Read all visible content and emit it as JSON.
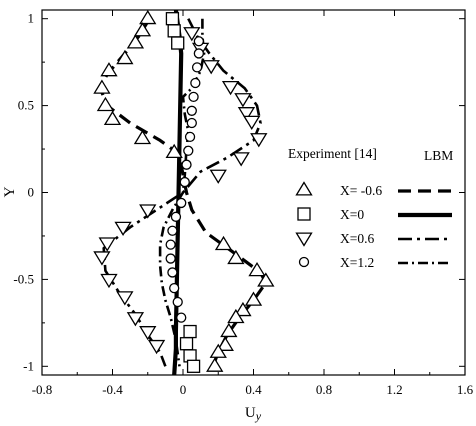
{
  "chart_data": {
    "type": "scatter",
    "xlabel": "U",
    "xlabel_sub": "y",
    "ylabel": "Y",
    "xlim": [
      -0.8,
      1.6
    ],
    "ylim": [
      -1.05,
      1.05
    ],
    "xticks": [
      -0.8,
      -0.4,
      0,
      0.4,
      0.8,
      1.2,
      1.6
    ],
    "xtick_labels": [
      "-0.8",
      "-0.4",
      "0",
      "0.4",
      "0.8",
      "1.2",
      "1.6"
    ],
    "yticks": [
      -1,
      -0.5,
      0,
      0.5,
      1
    ],
    "ytick_labels": [
      "-1",
      "-0.5",
      "0",
      "0.5",
      "1"
    ],
    "grid": false,
    "legend": {
      "placement": "right",
      "header_experiment": "Experiment  [14]",
      "header_lbm": "LBM"
    },
    "series": [
      {
        "label": "X= -0.6",
        "marker": "triangle-up",
        "line": "dashed",
        "experiment": [
          {
            "x": -0.2,
            "y": 1.0
          },
          {
            "x": -0.23,
            "y": 0.93
          },
          {
            "x": -0.27,
            "y": 0.86
          },
          {
            "x": -0.33,
            "y": 0.77
          },
          {
            "x": -0.42,
            "y": 0.7
          },
          {
            "x": -0.46,
            "y": 0.6
          },
          {
            "x": -0.44,
            "y": 0.5
          },
          {
            "x": -0.4,
            "y": 0.42
          },
          {
            "x": -0.23,
            "y": 0.31
          },
          {
            "x": -0.05,
            "y": 0.23
          },
          {
            "x": 0.23,
            "y": -0.3
          },
          {
            "x": 0.3,
            "y": -0.38
          },
          {
            "x": 0.42,
            "y": -0.45
          },
          {
            "x": 0.47,
            "y": -0.51
          },
          {
            "x": 0.4,
            "y": -0.62
          },
          {
            "x": 0.34,
            "y": -0.68
          },
          {
            "x": 0.3,
            "y": -0.72
          },
          {
            "x": 0.26,
            "y": -0.8
          },
          {
            "x": 0.24,
            "y": -0.88
          },
          {
            "x": 0.2,
            "y": -0.92
          },
          {
            "x": 0.18,
            "y": -1.0
          }
        ],
        "lbm": [
          {
            "x": -0.19,
            "y": 1.0
          },
          {
            "x": -0.25,
            "y": 0.9
          },
          {
            "x": -0.33,
            "y": 0.8
          },
          {
            "x": -0.43,
            "y": 0.68
          },
          {
            "x": -0.47,
            "y": 0.6
          },
          {
            "x": -0.43,
            "y": 0.5
          },
          {
            "x": -0.3,
            "y": 0.4
          },
          {
            "x": -0.13,
            "y": 0.3
          },
          {
            "x": -0.02,
            "y": 0.22
          },
          {
            "x": 0.0,
            "y": 0.1
          },
          {
            "x": 0.02,
            "y": 0.0
          },
          {
            "x": 0.05,
            "y": -0.1
          },
          {
            "x": 0.13,
            "y": -0.23
          },
          {
            "x": 0.28,
            "y": -0.34
          },
          {
            "x": 0.44,
            "y": -0.46
          },
          {
            "x": 0.47,
            "y": -0.52
          },
          {
            "x": 0.4,
            "y": -0.62
          },
          {
            "x": 0.32,
            "y": -0.72
          },
          {
            "x": 0.25,
            "y": -0.82
          },
          {
            "x": 0.2,
            "y": -0.92
          },
          {
            "x": 0.17,
            "y": -1.0
          }
        ]
      },
      {
        "label": "X=0",
        "marker": "square",
        "line": "solid-thick",
        "experiment": [
          {
            "x": -0.06,
            "y": 1.0
          },
          {
            "x": -0.05,
            "y": 0.93
          },
          {
            "x": -0.03,
            "y": 0.86
          },
          {
            "x": 0.04,
            "y": -0.8
          },
          {
            "x": 0.02,
            "y": -0.87
          },
          {
            "x": 0.04,
            "y": -0.94
          },
          {
            "x": 0.06,
            "y": -1.0
          }
        ],
        "lbm": [
          {
            "x": -0.04,
            "y": 1.05
          },
          {
            "x": -0.02,
            "y": 0.9
          },
          {
            "x": -0.01,
            "y": 0.8
          },
          {
            "x": -0.04,
            "y": -0.8
          },
          {
            "x": -0.04,
            "y": -0.9
          },
          {
            "x": -0.05,
            "y": -1.05
          }
        ]
      },
      {
        "label": "X=0.6",
        "marker": "triangle-down",
        "line": "long-short-dash",
        "experiment": [
          {
            "x": 0.05,
            "y": 0.92
          },
          {
            "x": 0.1,
            "y": 0.83
          },
          {
            "x": 0.16,
            "y": 0.73
          },
          {
            "x": 0.27,
            "y": 0.61
          },
          {
            "x": 0.34,
            "y": 0.54
          },
          {
            "x": 0.36,
            "y": 0.46
          },
          {
            "x": 0.39,
            "y": 0.41
          },
          {
            "x": 0.43,
            "y": 0.31
          },
          {
            "x": 0.33,
            "y": 0.2
          },
          {
            "x": 0.2,
            "y": 0.1
          },
          {
            "x": -0.2,
            "y": -0.1
          },
          {
            "x": -0.34,
            "y": -0.2
          },
          {
            "x": -0.43,
            "y": -0.29
          },
          {
            "x": -0.46,
            "y": -0.37
          },
          {
            "x": -0.42,
            "y": -0.5
          },
          {
            "x": -0.33,
            "y": -0.6
          },
          {
            "x": -0.27,
            "y": -0.72
          },
          {
            "x": -0.2,
            "y": -0.8
          },
          {
            "x": -0.15,
            "y": -0.88
          }
        ],
        "lbm": [
          {
            "x": 0.03,
            "y": 1.0
          },
          {
            "x": 0.08,
            "y": 0.9
          },
          {
            "x": 0.15,
            "y": 0.8
          },
          {
            "x": 0.23,
            "y": 0.7
          },
          {
            "x": 0.35,
            "y": 0.6
          },
          {
            "x": 0.42,
            "y": 0.5
          },
          {
            "x": 0.44,
            "y": 0.4
          },
          {
            "x": 0.4,
            "y": 0.3
          },
          {
            "x": 0.25,
            "y": 0.2
          },
          {
            "x": 0.1,
            "y": 0.12
          },
          {
            "x": 0.0,
            "y": 0.0
          },
          {
            "x": -0.12,
            "y": -0.08
          },
          {
            "x": -0.3,
            "y": -0.2
          },
          {
            "x": -0.45,
            "y": -0.32
          },
          {
            "x": -0.44,
            "y": -0.45
          },
          {
            "x": -0.36,
            "y": -0.58
          },
          {
            "x": -0.27,
            "y": -0.7
          },
          {
            "x": -0.2,
            "y": -0.82
          },
          {
            "x": -0.13,
            "y": -0.92
          },
          {
            "x": -0.1,
            "y": -1.0
          }
        ]
      },
      {
        "label": "X=1.2",
        "marker": "circle",
        "line": "solid-short-dash",
        "experiment": [
          {
            "x": 0.09,
            "y": 0.87
          },
          {
            "x": 0.09,
            "y": 0.8
          },
          {
            "x": 0.08,
            "y": 0.72
          },
          {
            "x": 0.07,
            "y": 0.63
          },
          {
            "x": 0.06,
            "y": 0.55
          },
          {
            "x": 0.05,
            "y": 0.47
          },
          {
            "x": 0.05,
            "y": 0.4
          },
          {
            "x": 0.04,
            "y": 0.32
          },
          {
            "x": 0.03,
            "y": 0.24
          },
          {
            "x": 0.02,
            "y": 0.16
          },
          {
            "x": 0.01,
            "y": 0.06
          },
          {
            "x": -0.01,
            "y": -0.06
          },
          {
            "x": -0.04,
            "y": -0.14
          },
          {
            "x": -0.06,
            "y": -0.22
          },
          {
            "x": -0.07,
            "y": -0.3
          },
          {
            "x": -0.07,
            "y": -0.38
          },
          {
            "x": -0.06,
            "y": -0.46
          },
          {
            "x": -0.05,
            "y": -0.55
          },
          {
            "x": -0.03,
            "y": -0.63
          },
          {
            "x": -0.01,
            "y": -0.72
          }
        ],
        "lbm": [
          {
            "x": 0.11,
            "y": 1.0
          },
          {
            "x": 0.11,
            "y": 0.9
          },
          {
            "x": 0.12,
            "y": 0.8
          },
          {
            "x": 0.1,
            "y": 0.7
          },
          {
            "x": 0.05,
            "y": 0.6
          },
          {
            "x": 0.0,
            "y": 0.55
          },
          {
            "x": 0.01,
            "y": 0.45
          },
          {
            "x": 0.03,
            "y": 0.35
          },
          {
            "x": 0.02,
            "y": 0.25
          },
          {
            "x": 0.01,
            "y": 0.1
          },
          {
            "x": 0.0,
            "y": 0.0
          },
          {
            "x": -0.06,
            "y": -0.1
          },
          {
            "x": -0.11,
            "y": -0.2
          },
          {
            "x": -0.13,
            "y": -0.3
          },
          {
            "x": -0.13,
            "y": -0.42
          },
          {
            "x": -0.12,
            "y": -0.52
          },
          {
            "x": -0.1,
            "y": -0.62
          },
          {
            "x": -0.07,
            "y": -0.72
          },
          {
            "x": -0.04,
            "y": -0.85
          },
          {
            "x": -0.02,
            "y": -1.0
          }
        ]
      }
    ]
  }
}
